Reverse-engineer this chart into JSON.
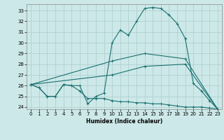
{
  "background_color": "#cde8e8",
  "grid_color": "#aacccc",
  "line_color": "#1a7070",
  "xlabel": "Humidex (Indice chaleur)",
  "xlim": [
    -0.5,
    23.5
  ],
  "ylim": [
    23.8,
    33.6
  ],
  "yticks": [
    24,
    25,
    26,
    27,
    28,
    29,
    30,
    31,
    32,
    33
  ],
  "xticks": [
    0,
    1,
    2,
    3,
    4,
    5,
    6,
    7,
    8,
    9,
    10,
    11,
    12,
    13,
    14,
    15,
    16,
    17,
    18,
    19,
    20,
    21,
    22,
    23
  ],
  "line1_x": [
    0,
    1,
    2,
    3,
    4,
    5,
    6,
    7,
    8,
    9,
    10,
    11,
    12,
    13,
    14,
    15,
    16,
    17,
    18,
    19,
    20,
    21,
    22,
    23
  ],
  "line1_y": [
    26.1,
    25.8,
    25.0,
    25.0,
    26.1,
    26.0,
    26.0,
    24.3,
    25.0,
    25.3,
    30.0,
    31.2,
    30.7,
    32.0,
    33.2,
    33.3,
    33.2,
    32.6,
    31.8,
    30.4,
    26.2,
    25.5,
    24.6,
    23.8
  ],
  "line2_x": [
    0,
    1,
    2,
    3,
    4,
    5,
    6,
    7,
    8,
    9,
    10,
    11,
    12,
    13,
    14,
    15,
    16,
    17,
    18,
    19,
    20,
    21,
    22,
    23
  ],
  "line2_y": [
    26.1,
    25.8,
    25.0,
    25.0,
    26.1,
    26.0,
    25.5,
    24.8,
    24.8,
    24.8,
    24.6,
    24.5,
    24.5,
    24.4,
    24.4,
    24.3,
    24.3,
    24.2,
    24.1,
    24.0,
    24.0,
    24.0,
    23.9,
    23.8
  ],
  "line3_x": [
    0,
    10,
    14,
    19,
    23
  ],
  "line3_y": [
    26.1,
    28.3,
    29.0,
    28.5,
    23.8
  ],
  "line4_x": [
    0,
    10,
    14,
    19,
    23
  ],
  "line4_y": [
    26.1,
    27.0,
    27.8,
    28.0,
    23.8
  ]
}
